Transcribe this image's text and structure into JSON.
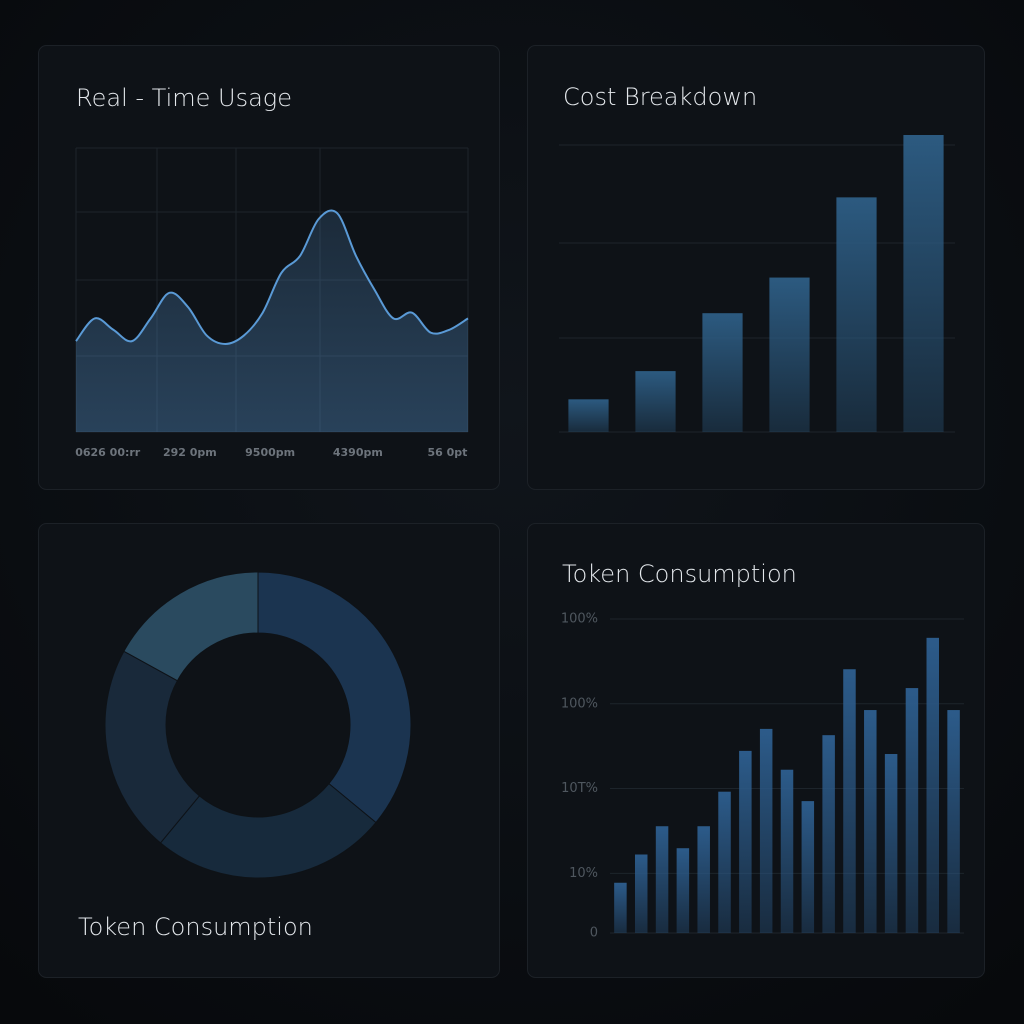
{
  "chart_data": [
    {
      "type": "line",
      "title": "Real - Time Usage",
      "x": [
        0,
        1,
        2,
        3,
        4,
        5,
        6,
        7,
        8,
        9,
        10,
        11,
        12,
        13,
        14,
        15,
        16,
        17,
        18,
        19,
        20,
        21
      ],
      "values": [
        32,
        40,
        36,
        32,
        40,
        49,
        44,
        34,
        31,
        34,
        42,
        56,
        62,
        75,
        77,
        62,
        50,
        40,
        42,
        35,
        36,
        40
      ],
      "xlim": [
        0,
        21
      ],
      "ylim": [
        0,
        100
      ],
      "xticks": [
        {
          "value": 1.7,
          "label": "0626 00:rr"
        },
        {
          "value": 6.1,
          "label": "292 0pm"
        },
        {
          "value": 10.4,
          "label": "9500pm"
        },
        {
          "value": 15.1,
          "label": "4390pm"
        },
        {
          "value": 19.9,
          "label": "56 0pt"
        }
      ],
      "color": "#5a9ad6"
    },
    {
      "type": "bar",
      "title": "Cost Breakdown",
      "categories": [
        null,
        null,
        null,
        null,
        null,
        null
      ],
      "values": [
        11,
        20.5,
        40,
        52,
        79,
        100
      ],
      "ylim": [
        0,
        100
      ],
      "color": "#2c5a80"
    },
    {
      "type": "pie",
      "title": "Token Consumption",
      "values": [
        36,
        25,
        22,
        17
      ],
      "colors": [
        "#1b3450",
        "#172a3c",
        "#19293a",
        "#2a4a5f"
      ]
    },
    {
      "type": "bar",
      "title": "Token Consumption",
      "categories": [
        null,
        null,
        null,
        null,
        null,
        null,
        null,
        null,
        null,
        null,
        null,
        null,
        null,
        null,
        null,
        null,
        null
      ],
      "values": [
        16,
        25,
        34,
        27,
        34,
        45,
        58,
        65,
        52,
        42,
        63,
        84,
        71,
        57,
        78,
        94,
        71
      ],
      "ylim": [
        0,
        100
      ],
      "yticks": [
        0,
        {
          "value": 19,
          "label": "10%"
        },
        {
          "value": 46,
          "label": "10T%"
        },
        {
          "value": 73,
          "label": "100%"
        },
        {
          "value": 100,
          "label": "100%"
        }
      ],
      "color": "#2c5b8a"
    }
  ]
}
